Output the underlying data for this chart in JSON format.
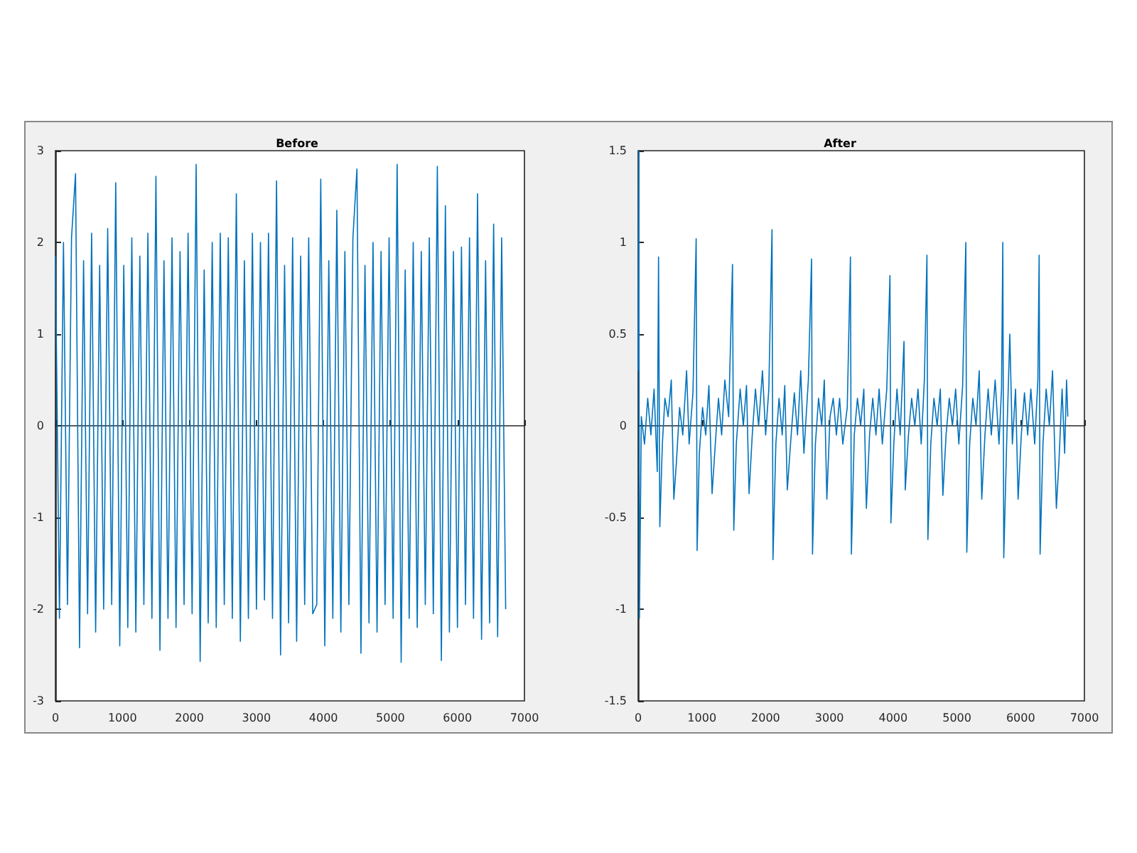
{
  "chart_data": [
    {
      "type": "line",
      "title": "Before",
      "xlim": [
        0,
        7000
      ],
      "xticks": [
        0,
        1000,
        2000,
        3000,
        4000,
        5000,
        6000,
        7000
      ],
      "ylim": [
        -3,
        3
      ],
      "yticks": [
        -3,
        -2,
        -1,
        0,
        1,
        2,
        3
      ],
      "series": [
        {
          "color": "#0072bd",
          "x": [
            0,
            60,
            120,
            180,
            240,
            300,
            360,
            420,
            480,
            540,
            600,
            660,
            720,
            780,
            840,
            900,
            960,
            1020,
            1080,
            1140,
            1200,
            1260,
            1320,
            1380,
            1440,
            1500,
            1560,
            1620,
            1680,
            1740,
            1800,
            1860,
            1920,
            1980,
            2040,
            2100,
            2160,
            2220,
            2280,
            2340,
            2400,
            2460,
            2520,
            2580,
            2640,
            2700,
            2760,
            2820,
            2880,
            2940,
            3000,
            3060,
            3120,
            3180,
            3240,
            3300,
            3360,
            3420,
            3480,
            3540,
            3600,
            3660,
            3720,
            3780,
            3840,
            3900,
            3960,
            4020,
            4080,
            4140,
            4200,
            4260,
            4320,
            4380,
            4440,
            4500,
            4560,
            4620,
            4680,
            4740,
            4800,
            4860,
            4920,
            4980,
            5040,
            5100,
            5160,
            5220,
            5280,
            5340,
            5400,
            5460,
            5520,
            5580,
            5640,
            5700,
            5760,
            5820,
            5880,
            5940,
            6000,
            6060,
            6120,
            6180,
            6240,
            6300,
            6360,
            6420,
            6480,
            6540,
            6600,
            6660,
            6720
          ],
          "values": [
            1.85,
            -2.1,
            2.0,
            -1.95,
            2.05,
            2.75,
            -2.42,
            1.8,
            -2.05,
            2.1,
            -2.25,
            1.75,
            -2.0,
            2.15,
            -1.95,
            2.65,
            -2.4,
            1.75,
            -2.2,
            2.05,
            -2.25,
            1.85,
            -1.95,
            2.1,
            -2.1,
            2.72,
            -2.45,
            1.8,
            -2.1,
            2.05,
            -2.2,
            1.9,
            -1.95,
            2.1,
            -2.05,
            2.85,
            -2.57,
            1.7,
            -2.15,
            2.0,
            -2.2,
            2.1,
            -1.95,
            2.05,
            -2.1,
            2.53,
            -2.35,
            1.8,
            -2.1,
            2.1,
            -2.0,
            2.0,
            -1.9,
            2.1,
            -2.1,
            2.67,
            -2.5,
            1.75,
            -2.15,
            2.05,
            -2.35,
            1.85,
            -1.95,
            2.05,
            -2.05,
            -1.95,
            2.69,
            -2.4,
            1.8,
            -2.1,
            2.35,
            -2.25,
            1.9,
            -1.95,
            2.05,
            2.8,
            -2.48,
            1.75,
            -2.15,
            2.0,
            -2.25,
            1.9,
            -1.95,
            2.05,
            -2.1,
            2.85,
            -2.58,
            1.7,
            -2.1,
            2.0,
            -2.2,
            1.9,
            -1.95,
            2.05,
            -2.05,
            2.83,
            -2.56,
            2.4,
            -2.25,
            1.9,
            -2.2,
            1.95,
            -1.95,
            2.05,
            -2.1,
            2.53,
            -2.33,
            1.8,
            -2.15,
            2.2,
            -2.3,
            2.05,
            -2.0
          ]
        }
      ]
    },
    {
      "type": "line",
      "title": "After",
      "xlim": [
        0,
        7000
      ],
      "xticks": [
        0,
        1000,
        2000,
        3000,
        4000,
        5000,
        6000,
        7000
      ],
      "ylim": [
        -1.5,
        1.5
      ],
      "yticks": [
        -1.5,
        -1,
        -0.5,
        0,
        0.5,
        1,
        1.5
      ],
      "series": [
        {
          "color": "#0072bd",
          "x": [
            0,
            10,
            20,
            50,
            100,
            150,
            200,
            250,
            300,
            320,
            340,
            380,
            420,
            470,
            520,
            560,
            600,
            650,
            700,
            760,
            800,
            860,
            910,
            925,
            960,
            1010,
            1060,
            1110,
            1160,
            1210,
            1260,
            1310,
            1360,
            1420,
            1480,
            1500,
            1540,
            1600,
            1650,
            1700,
            1740,
            1790,
            1840,
            1890,
            1950,
            2000,
            2050,
            2100,
            2115,
            2160,
            2210,
            2260,
            2300,
            2340,
            2390,
            2450,
            2500,
            2550,
            2600,
            2670,
            2720,
            2735,
            2780,
            2830,
            2880,
            2920,
            2960,
            3010,
            3060,
            3110,
            3160,
            3210,
            3280,
            3330,
            3345,
            3390,
            3440,
            3490,
            3540,
            3580,
            3630,
            3680,
            3730,
            3780,
            3830,
            3900,
            3950,
            3965,
            4010,
            4060,
            4110,
            4170,
            4190,
            4240,
            4290,
            4340,
            4390,
            4440,
            4490,
            4530,
            4545,
            4590,
            4640,
            4690,
            4740,
            4780,
            4830,
            4880,
            4930,
            4980,
            5030,
            5090,
            5140,
            5155,
            5200,
            5250,
            5300,
            5350,
            5390,
            5440,
            5490,
            5540,
            5600,
            5660,
            5700,
            5720,
            5735,
            5780,
            5830,
            5870,
            5920,
            5960,
            6010,
            6060,
            6110,
            6160,
            6220,
            6270,
            6290,
            6305,
            6350,
            6400,
            6450,
            6500,
            6560,
            6600,
            6650,
            6690,
            6720,
            6740
          ],
          "values": [
            0.3,
            1.5,
            -1.05,
            0.05,
            -0.1,
            0.15,
            -0.05,
            0.2,
            -0.25,
            0.92,
            -0.55,
            -0.1,
            0.15,
            0.05,
            0.25,
            -0.4,
            -0.2,
            0.1,
            -0.05,
            0.3,
            -0.1,
            0.18,
            1.02,
            -0.68,
            -0.15,
            0.1,
            -0.05,
            0.22,
            -0.37,
            -0.1,
            0.15,
            -0.05,
            0.25,
            0.05,
            0.88,
            -0.57,
            -0.1,
            0.2,
            0,
            0.22,
            -0.37,
            -0.05,
            0.2,
            0,
            0.3,
            -0.05,
            0.2,
            1.07,
            -0.73,
            -0.1,
            0.15,
            -0.05,
            0.22,
            -0.35,
            -0.1,
            0.18,
            -0.05,
            0.3,
            -0.15,
            0.25,
            0.91,
            -0.7,
            -0.1,
            0.15,
            0,
            0.25,
            -0.4,
            0.05,
            0.15,
            -0.05,
            0.15,
            -0.1,
            0.1,
            0.92,
            -0.7,
            -0.05,
            0.15,
            0,
            0.2,
            -0.45,
            -0.05,
            0.15,
            -0.05,
            0.2,
            -0.1,
            0.2,
            0.82,
            -0.53,
            -0.1,
            0.2,
            -0.05,
            0.46,
            -0.35,
            -0.05,
            0.15,
            0,
            0.2,
            -0.1,
            0.25,
            0.93,
            -0.62,
            -0.1,
            0.15,
            0,
            0.2,
            -0.38,
            -0.05,
            0.15,
            0,
            0.2,
            -0.1,
            0.22,
            1.0,
            -0.69,
            -0.1,
            0.15,
            0,
            0.3,
            -0.4,
            -0.05,
            0.2,
            -0.05,
            0.25,
            -0.1,
            0.2,
            1.0,
            -0.72,
            -0.1,
            0.5,
            -0.1,
            0.2,
            -0.4,
            -0.05,
            0.18,
            -0.05,
            0.2,
            -0.1,
            0.25,
            0.93,
            -0.7,
            -0.1,
            0.2,
            0,
            0.3,
            -0.45,
            -0.2,
            0.2,
            -0.15,
            0.25,
            0.05
          ]
        }
      ]
    }
  ]
}
